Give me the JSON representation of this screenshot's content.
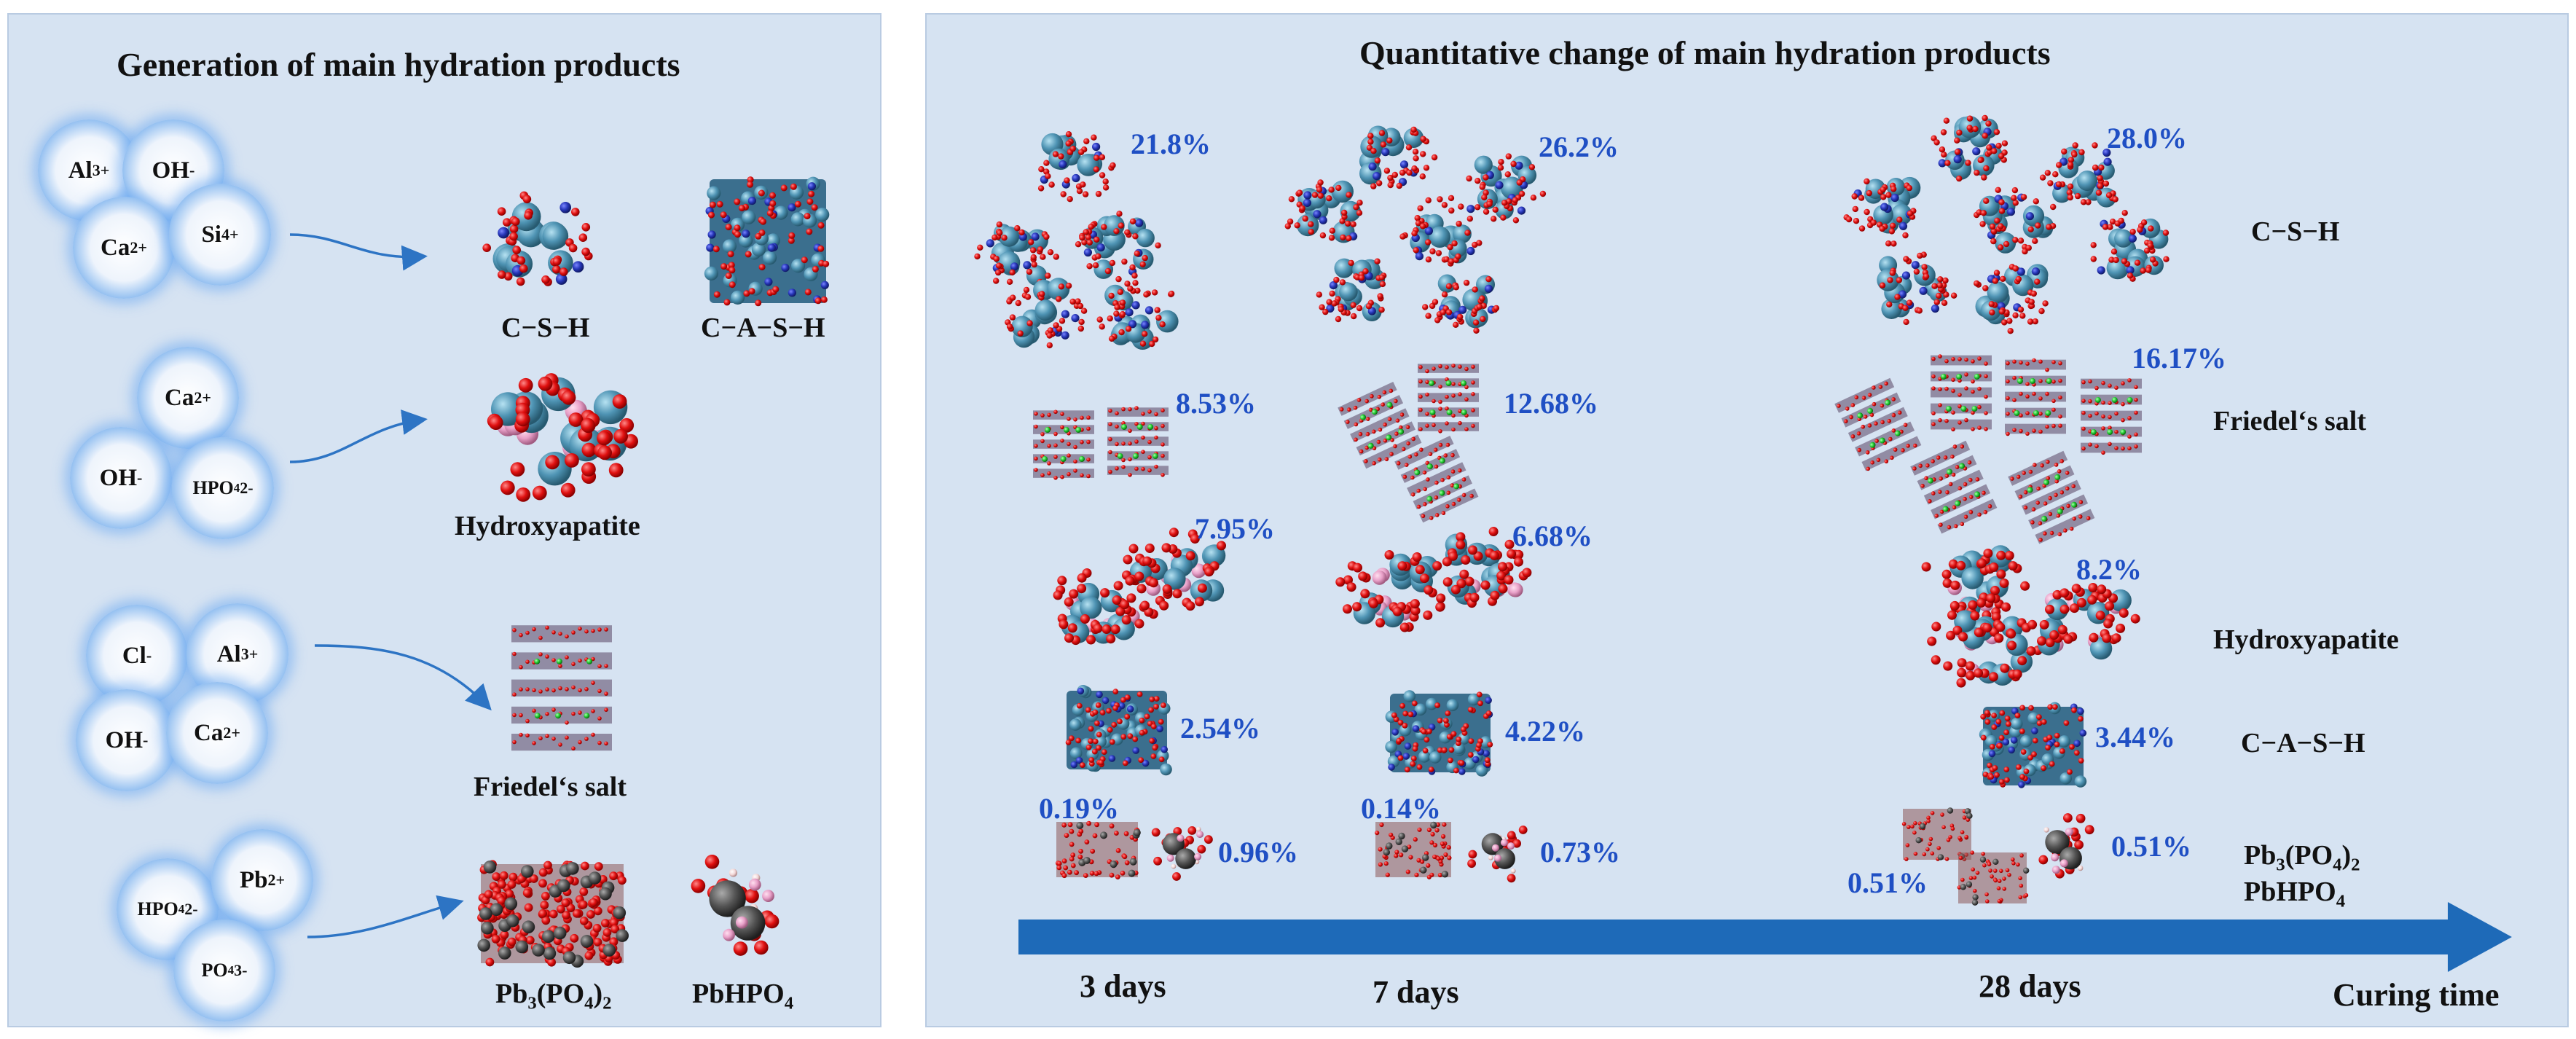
{
  "left": {
    "title": "Generation of  main hydration products",
    "groups": [
      {
        "ions": [
          "Al³⁺",
          "OH⁻",
          "Ca²⁺",
          "Si⁴⁺"
        ],
        "products": [
          "C−S−H",
          "C−A−S−H"
        ]
      },
      {
        "ions": [
          "Ca²⁺",
          "OH⁻",
          "HPO₄²⁻"
        ],
        "products": [
          "Hydroxyapatite"
        ]
      },
      {
        "ions": [
          "Cl⁻",
          "Al³⁺",
          "OH⁻",
          "Ca²⁺"
        ],
        "products": [
          "Friedel‘s salt"
        ]
      },
      {
        "ions": [
          "HPO₄²⁻",
          "Pb²⁺",
          "PO₄³⁻"
        ],
        "products": [
          "Pb₃(PO₄)₂",
          "PbHPO₄"
        ]
      }
    ]
  },
  "right": {
    "title": "Quantitative change of main hydration products",
    "axis_label": "Curing time",
    "days": [
      "3 days",
      "7 days",
      "28 days"
    ],
    "row_labels": [
      "C−S−H",
      "Friedel‘s salt",
      "Hydroxyapatite",
      "C−A−S−H",
      "Pb₃(PO₄)₂",
      "PbHPO₄"
    ],
    "percentages": {
      "csh": [
        "21.8%",
        "26.2%",
        "28.0%"
      ],
      "friedel": [
        "8.53%",
        "12.68%",
        "16.17%"
      ],
      "hydroxyapatite": [
        "7.95%",
        "6.68%",
        "8.2%"
      ],
      "cash": [
        "2.54%",
        "4.22%",
        "3.44%"
      ],
      "pb3po42": [
        "0.19%",
        "0.14%",
        "0.51%"
      ],
      "pbhpo4": [
        "0.96%",
        "0.73%",
        "0.51%"
      ]
    }
  },
  "colors": {
    "panel_bg": "#d6e3f2",
    "arrow_blue": "#1e6ab8",
    "percent_blue": "#1f4fc4",
    "oxygen_red": "#e01010",
    "calcium_teal": "#4f94b4",
    "silicon_blue": "#2636b8",
    "chlorine_green": "#22cc33",
    "lead_gray": "#555555",
    "phosphorus_pink": "#e8a0c8"
  }
}
